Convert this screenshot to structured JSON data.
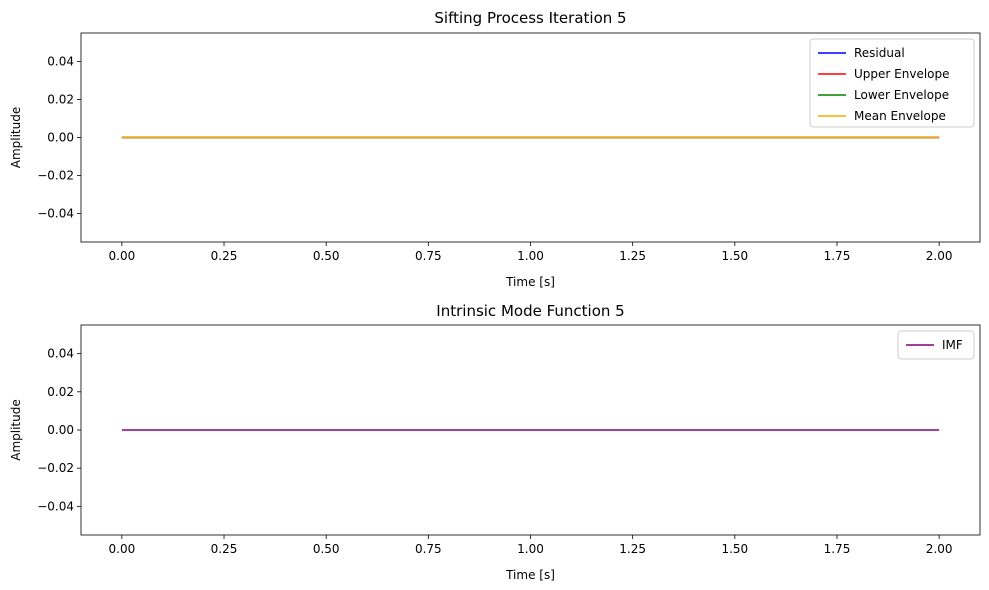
{
  "chart_data": [
    {
      "type": "line",
      "title": "Sifting Process Iteration 5",
      "xlabel": "Time [s]",
      "ylabel": "Amplitude",
      "xlim": [
        -0.1,
        2.1
      ],
      "ylim": [
        -0.055,
        0.055
      ],
      "xticks": [
        0.0,
        0.25,
        0.5,
        0.75,
        1.0,
        1.25,
        1.5,
        1.75,
        2.0
      ],
      "xtick_labels": [
        "0.00",
        "0.25",
        "0.50",
        "0.75",
        "1.00",
        "1.25",
        "1.50",
        "1.75",
        "2.00"
      ],
      "yticks": [
        0.04,
        0.02,
        0.0,
        -0.02,
        -0.04
      ],
      "ytick_labels": [
        "0.04",
        "0.02",
        "0.00",
        "−0.02",
        "−0.04"
      ],
      "grid": false,
      "legend_position": "top-right",
      "series": [
        {
          "name": "Residual",
          "color": "#0000ff",
          "x": [
            0.0,
            2.0
          ],
          "y": [
            0.0,
            0.0
          ]
        },
        {
          "name": "Upper Envelope",
          "color": "#ff0000",
          "x": [
            0.0,
            2.0
          ],
          "y": [
            0.0,
            0.0
          ]
        },
        {
          "name": "Lower Envelope",
          "color": "#008000",
          "x": [
            0.0,
            2.0
          ],
          "y": [
            0.0,
            0.0
          ]
        },
        {
          "name": "Mean Envelope",
          "color": "#ffa500",
          "x": [
            0.0,
            2.0
          ],
          "y": [
            0.0,
            0.0
          ]
        }
      ]
    },
    {
      "type": "line",
      "title": "Intrinsic Mode Function 5",
      "xlabel": "Time [s]",
      "ylabel": "Amplitude",
      "xlim": [
        -0.1,
        2.1
      ],
      "ylim": [
        -0.055,
        0.055
      ],
      "xticks": [
        0.0,
        0.25,
        0.5,
        0.75,
        1.0,
        1.25,
        1.5,
        1.75,
        2.0
      ],
      "xtick_labels": [
        "0.00",
        "0.25",
        "0.50",
        "0.75",
        "1.00",
        "1.25",
        "1.50",
        "1.75",
        "2.00"
      ],
      "yticks": [
        0.04,
        0.02,
        0.0,
        -0.02,
        -0.04
      ],
      "ytick_labels": [
        "0.04",
        "0.02",
        "0.00",
        "−0.02",
        "−0.04"
      ],
      "grid": false,
      "legend_position": "top-right",
      "series": [
        {
          "name": "IMF",
          "color": "#800080",
          "x": [
            0.0,
            2.0
          ],
          "y": [
            0.0,
            0.0
          ]
        }
      ]
    }
  ]
}
